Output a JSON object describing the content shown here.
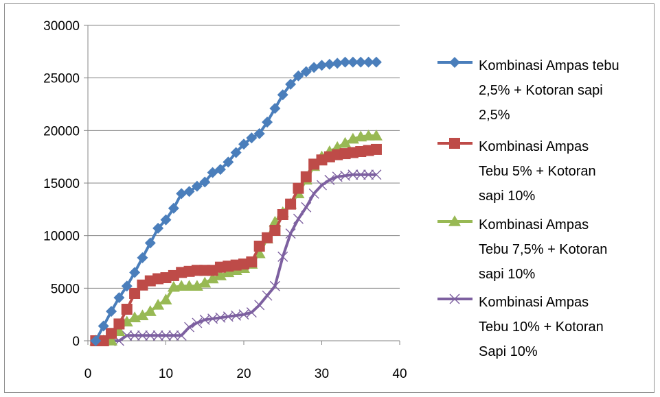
{
  "chart_data": {
    "type": "line",
    "title": "",
    "xlabel": "",
    "ylabel": "",
    "xlim": [
      0,
      40
    ],
    "ylim": [
      0,
      30000
    ],
    "x_ticks": [
      "0",
      "10",
      "20",
      "30",
      "40"
    ],
    "y_ticks": [
      "0",
      "5000",
      "10000",
      "15000",
      "20000",
      "25000",
      "30000"
    ],
    "grid": "horizontal",
    "legend_position": "right",
    "series": [
      {
        "name": "Kombinasi Ampas tebu 2,5% + Kotoran sapi 2,5%",
        "legend_lines": [
          "Kombinasi Ampas tebu",
          "2,5% + Kotoran sapi",
          "2,5%"
        ],
        "color": "#4a7ebb",
        "marker": "diamond",
        "x": [
          1,
          2,
          3,
          4,
          5,
          6,
          7,
          8,
          9,
          10,
          11,
          12,
          13,
          14,
          15,
          16,
          17,
          18,
          19,
          20,
          21,
          22,
          23,
          24,
          25,
          26,
          27,
          28,
          29,
          30,
          31,
          32,
          33,
          34,
          35,
          36,
          37
        ],
        "y": [
          0,
          1400,
          2800,
          4100,
          5200,
          6500,
          7900,
          9300,
          10700,
          11500,
          12600,
          14000,
          14200,
          14700,
          15100,
          16000,
          16300,
          17000,
          17900,
          18700,
          19300,
          19700,
          20800,
          22100,
          23400,
          24400,
          25200,
          25600,
          26000,
          26200,
          26300,
          26400,
          26500,
          26500,
          26500,
          26500,
          26500
        ]
      },
      {
        "name": "Kombinasi Ampas Tebu 5% + Kotoran sapi 10%",
        "legend_lines": [
          "Kombinasi Ampas",
          "Tebu 5% + Kotoran",
          "sapi 10%"
        ],
        "color": "#be4b48",
        "marker": "square",
        "x": [
          1,
          2,
          3,
          4,
          5,
          6,
          7,
          8,
          9,
          10,
          11,
          12,
          13,
          14,
          15,
          16,
          17,
          18,
          19,
          20,
          21,
          22,
          23,
          24,
          25,
          26,
          27,
          28,
          29,
          30,
          31,
          32,
          33,
          34,
          35,
          36,
          37
        ],
        "y": [
          0,
          0,
          700,
          1600,
          3000,
          4500,
          5300,
          5700,
          5900,
          6000,
          6200,
          6500,
          6600,
          6700,
          6700,
          6700,
          7000,
          7100,
          7200,
          7300,
          7500,
          9000,
          9800,
          10500,
          12000,
          13000,
          14500,
          15600,
          16800,
          17200,
          17500,
          17700,
          17800,
          17900,
          18000,
          18100,
          18200
        ]
      },
      {
        "name": "Kombinasi Ampas Tebu 7,5% + Kotoran sapi 10%",
        "legend_lines": [
          "Kombinasi Ampas",
          "Tebu 7,5% + Kotoran",
          "sapi 10%"
        ],
        "color": "#98b954",
        "marker": "triangle",
        "x": [
          1,
          2,
          3,
          4,
          5,
          6,
          7,
          8,
          9,
          10,
          11,
          12,
          13,
          14,
          15,
          16,
          17,
          18,
          19,
          20,
          21,
          22,
          23,
          24,
          25,
          26,
          27,
          28,
          29,
          30,
          31,
          32,
          33,
          34,
          35,
          36,
          37
        ],
        "y": [
          0,
          0,
          0,
          900,
          1800,
          2200,
          2400,
          2800,
          3400,
          3900,
          5100,
          5200,
          5200,
          5200,
          5500,
          5900,
          6200,
          6500,
          6700,
          6900,
          7300,
          8300,
          9700,
          11300,
          12200,
          13000,
          14000,
          15300,
          16600,
          17500,
          18000,
          18400,
          18800,
          19200,
          19400,
          19500,
          19500
        ]
      },
      {
        "name": "Kombinasi Ampas Tebu 10% + Kotoran Sapi 10%",
        "legend_lines": [
          "Kombinasi Ampas",
          "Tebu 10% + Kotoran",
          "Sapi 10%"
        ],
        "color": "#7d60a0",
        "marker": "x",
        "x": [
          1,
          2,
          3,
          4,
          5,
          6,
          7,
          8,
          9,
          10,
          11,
          12,
          13,
          14,
          15,
          16,
          17,
          18,
          19,
          20,
          21,
          22,
          23,
          24,
          25,
          26,
          27,
          28,
          29,
          30,
          31,
          32,
          33,
          34,
          35,
          36,
          37
        ],
        "y": [
          0,
          0,
          0,
          0,
          500,
          500,
          500,
          500,
          500,
          500,
          500,
          500,
          1300,
          1700,
          2000,
          2100,
          2200,
          2300,
          2400,
          2500,
          2700,
          3400,
          4300,
          5200,
          8000,
          10200,
          11600,
          12700,
          14000,
          14800,
          15300,
          15600,
          15700,
          15800,
          15800,
          15800,
          15800
        ]
      }
    ]
  }
}
